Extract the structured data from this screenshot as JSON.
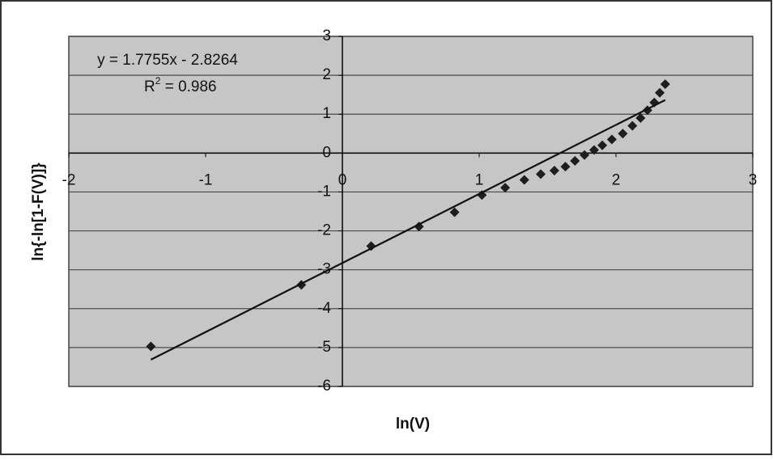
{
  "chart_data": {
    "type": "scatter",
    "x_label": "ln(V)",
    "y_label": "ln{-ln[1-F(V)]}",
    "annotations": {
      "equation": "y = 1.7755x - 2.8264",
      "r2_base": "R",
      "r2_sup": "2",
      "r2_rest": " = 0.986"
    },
    "xlim": [
      -2,
      3
    ],
    "xticks": [
      -2,
      -1,
      0,
      1,
      2,
      3
    ],
    "ylim": [
      -6,
      3
    ],
    "yticks": [
      -6,
      -5,
      -4,
      -3,
      -2,
      -1,
      0,
      1,
      2,
      3
    ],
    "grid": true,
    "background": "#c6c6c6",
    "series": [
      {
        "name": "data",
        "color": "#1e1e1e",
        "x": [
          -1.4,
          -0.3,
          0.21,
          0.56,
          0.82,
          1.02,
          1.19,
          1.33,
          1.45,
          1.55,
          1.63,
          1.7,
          1.77,
          1.84,
          1.9,
          1.97,
          2.05,
          2.12,
          2.18,
          2.23,
          2.28,
          2.32,
          2.36
        ],
        "values": [
          -4.97,
          -3.39,
          -2.39,
          -1.89,
          -1.52,
          -1.08,
          -0.89,
          -0.69,
          -0.54,
          -0.45,
          -0.35,
          -0.2,
          -0.05,
          0.08,
          0.2,
          0.35,
          0.5,
          0.7,
          0.9,
          1.1,
          1.3,
          1.55,
          1.77
        ]
      },
      {
        "name": "trendline",
        "color": "#111111",
        "x": [
          -1.4,
          2.36
        ],
        "values": [
          -5.312,
          1.364
        ]
      }
    ]
  }
}
